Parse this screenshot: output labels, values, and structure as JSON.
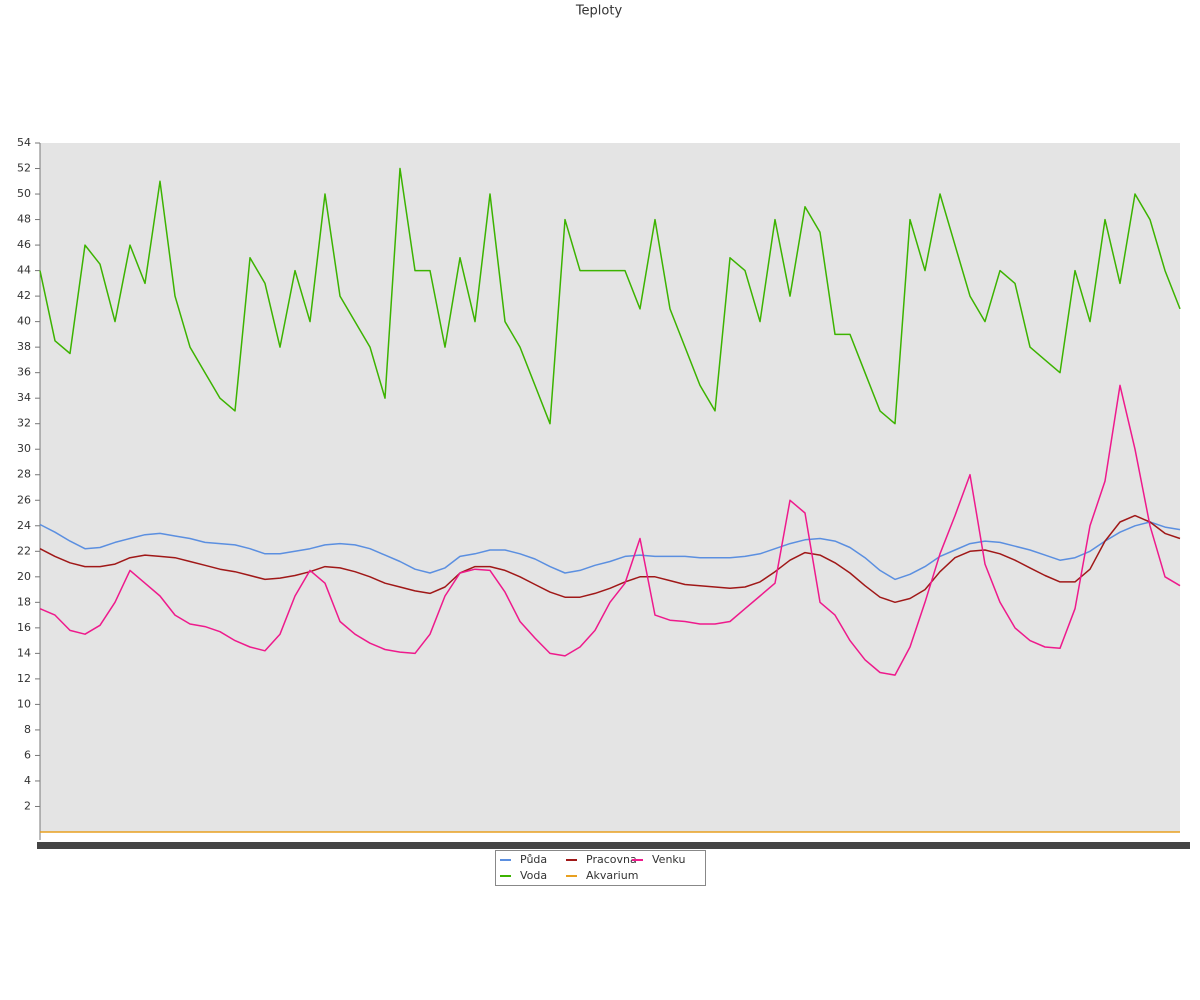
{
  "chart_data": {
    "type": "line",
    "title": "Teploty",
    "categories": [
      null,
      null,
      null,
      null,
      null,
      null,
      null,
      null,
      null,
      null,
      null,
      null,
      null,
      null,
      null,
      null,
      null,
      null,
      null,
      null,
      null,
      null,
      null,
      null,
      null,
      null,
      null,
      null,
      null,
      null,
      null,
      null,
      null,
      null,
      null,
      null,
      null,
      null,
      null,
      null,
      null,
      null,
      null,
      null,
      null,
      null,
      null,
      null,
      null,
      null,
      null,
      null,
      null,
      null,
      null,
      null,
      null,
      null,
      null,
      null,
      null,
      null,
      null,
      null,
      null,
      null,
      null,
      null,
      null,
      null,
      null,
      null,
      null,
      null,
      null,
      null,
      null
    ],
    "ylim": [
      0,
      54
    ],
    "yticks": [
      2,
      4,
      6,
      8,
      10,
      12,
      14,
      16,
      18,
      20,
      22,
      24,
      26,
      28,
      30,
      32,
      34,
      36,
      38,
      40,
      42,
      44,
      46,
      48,
      50,
      52,
      54
    ],
    "series": [
      {
        "name": "Půda",
        "color": "#5b8fe0",
        "values": [
          24.1,
          23.5,
          22.8,
          22.2,
          22.3,
          22.7,
          23,
          23.3,
          23.4,
          23.2,
          23,
          22.7,
          22.6,
          22.5,
          22.2,
          21.8,
          21.8,
          22,
          22.2,
          22.5,
          22.6,
          22.5,
          22.2,
          21.7,
          21.2,
          20.6,
          20.3,
          20.7,
          21.6,
          21.8,
          22.1,
          22.1,
          21.8,
          21.4,
          20.8,
          20.3,
          20.5,
          20.9,
          21.2,
          21.6,
          21.7,
          21.6,
          21.6,
          21.6,
          21.5,
          21.5,
          21.5,
          21.6,
          21.8,
          22.2,
          22.6,
          22.9,
          23,
          22.8,
          22.3,
          21.5,
          20.5,
          19.8,
          20.2,
          20.8,
          21.6,
          22.1,
          22.6,
          22.8,
          22.7,
          22.4,
          22.1,
          21.7,
          21.3,
          21.5,
          22,
          22.8,
          23.5,
          24,
          24.3,
          23.9,
          23.7
        ]
      },
      {
        "name": "Voda",
        "color": "#3cb300",
        "values": [
          44,
          38.5,
          37.5,
          46,
          44.5,
          40,
          46,
          43,
          51,
          42,
          38,
          36,
          34,
          33,
          45,
          43,
          38,
          44,
          40,
          50,
          42,
          40,
          38,
          34,
          52,
          44,
          44,
          38,
          45,
          40,
          50,
          40,
          38,
          35,
          32,
          48,
          44,
          44,
          44,
          44,
          41,
          48,
          41,
          38,
          35,
          33,
          45,
          44,
          40,
          48,
          42,
          49,
          47,
          39,
          39,
          36,
          33,
          32,
          48,
          44,
          50,
          46,
          42,
          40,
          44,
          43,
          38,
          37,
          36,
          44,
          40,
          48,
          43,
          50,
          48,
          44,
          41
        ]
      },
      {
        "name": "Pracovna",
        "color": "#a01818",
        "values": [
          22.2,
          21.6,
          21.1,
          20.8,
          20.8,
          21,
          21.5,
          21.7,
          21.6,
          21.5,
          21.2,
          20.9,
          20.6,
          20.4,
          20.1,
          19.8,
          19.9,
          20.1,
          20.4,
          20.8,
          20.7,
          20.4,
          20,
          19.5,
          19.2,
          18.9,
          18.7,
          19.2,
          20.3,
          20.8,
          20.8,
          20.5,
          20,
          19.4,
          18.8,
          18.4,
          18.4,
          18.7,
          19.1,
          19.6,
          20,
          20,
          19.7,
          19.4,
          19.3,
          19.2,
          19.1,
          19.2,
          19.6,
          20.4,
          21.3,
          21.9,
          21.7,
          21.1,
          20.3,
          19.3,
          18.4,
          18,
          18.3,
          19,
          20.4,
          21.5,
          22,
          22.1,
          21.8,
          21.3,
          20.7,
          20.1,
          19.6,
          19.6,
          20.6,
          22.8,
          24.3,
          24.8,
          24.3,
          23.4,
          23
        ]
      },
      {
        "name": "Akvarium",
        "color": "#e8a020",
        "values": [
          0,
          0,
          0,
          0,
          0,
          0,
          0,
          0,
          0,
          0,
          0,
          0,
          0,
          0,
          0,
          0,
          0,
          0,
          0,
          0,
          0,
          0,
          0,
          0,
          0,
          0,
          0,
          0,
          0,
          0,
          0,
          0,
          0,
          0,
          0,
          0,
          0,
          0,
          0,
          0,
          0,
          0,
          0,
          0,
          0,
          0,
          0,
          0,
          0,
          0,
          0,
          0,
          0,
          0,
          0,
          0,
          0,
          0,
          0,
          0,
          0,
          0,
          0,
          0,
          0,
          0,
          0,
          0,
          0,
          0,
          0,
          0,
          0,
          0,
          0,
          0,
          0
        ]
      },
      {
        "name": "Venku",
        "color": "#ee1a8c",
        "values": [
          17.5,
          17,
          15.8,
          15.5,
          16.2,
          18,
          20.5,
          19.5,
          18.5,
          17,
          16.3,
          16.1,
          15.7,
          15,
          14.5,
          14.2,
          15.5,
          18.5,
          20.5,
          19.5,
          16.5,
          15.5,
          14.8,
          14.3,
          14.1,
          14,
          15.5,
          18.5,
          20.3,
          20.6,
          20.5,
          18.8,
          16.5,
          15.2,
          14,
          13.8,
          14.5,
          15.8,
          18,
          19.5,
          23,
          17,
          16.6,
          16.5,
          16.3,
          16.3,
          16.5,
          17.5,
          18.5,
          19.5,
          26,
          25,
          18,
          17,
          15,
          13.5,
          12.5,
          12.3,
          14.5,
          18,
          21.8,
          24.8,
          28,
          21,
          18,
          16,
          15,
          14.5,
          14.4,
          17.5,
          24,
          27.5,
          35,
          30,
          24,
          20,
          19.3
        ]
      }
    ]
  }
}
